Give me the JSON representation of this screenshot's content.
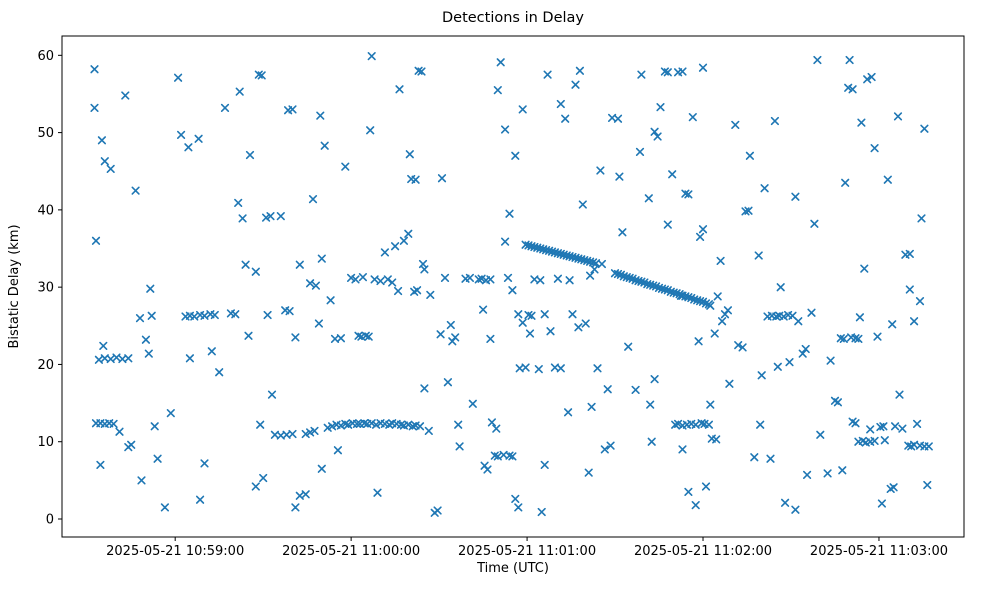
{
  "chart_data": {
    "type": "scatter",
    "title": "Detections in Delay",
    "xlabel": "Time (UTC)",
    "ylabel": "Bistatic Delay (km)",
    "marker": "x",
    "marker_color": "#1f77b4",
    "grid": false,
    "legend": null,
    "x_axis": {
      "unit": "seconds after 2025-05-21 10:58:00 UTC",
      "lim": [
        21.4,
        329.0
      ],
      "ticks": [
        60,
        120,
        180,
        240,
        300
      ],
      "tick_labels": [
        "2025-05-21 10:59:00",
        "2025-05-21 11:00:00",
        "2025-05-21 11:01:00",
        "2025-05-21 11:02:00",
        "2025-05-21 11:03:00"
      ]
    },
    "y_axis": {
      "lim": [
        -2.33,
        62.5
      ],
      "ticks": [
        0,
        10,
        20,
        30,
        40,
        50,
        60
      ],
      "tick_labels": [
        "0",
        "10",
        "20",
        "30",
        "40",
        "50",
        "60"
      ]
    },
    "points": [
      [
        32.5,
        58.2
      ],
      [
        32.5,
        53.2
      ],
      [
        33,
        36.0
      ],
      [
        33,
        12.4
      ],
      [
        34.5,
        12.4
      ],
      [
        34.5,
        7.0
      ],
      [
        34,
        20.6
      ],
      [
        35.5,
        22.4
      ],
      [
        36,
        20.8
      ],
      [
        36,
        12.3
      ],
      [
        36,
        46.3
      ],
      [
        35,
        49.0
      ],
      [
        37.5,
        12.4
      ],
      [
        38,
        20.7
      ],
      [
        38,
        45.3
      ],
      [
        39,
        12.3
      ],
      [
        40,
        20.9
      ],
      [
        41,
        11.3
      ],
      [
        42,
        20.7
      ],
      [
        43,
        54.8
      ],
      [
        44,
        20.8
      ],
      [
        44,
        9.3
      ],
      [
        45,
        9.6
      ],
      [
        46.5,
        42.5
      ],
      [
        48,
        26.0
      ],
      [
        48.5,
        5.0
      ],
      [
        50,
        23.2
      ],
      [
        51,
        21.4
      ],
      [
        51.5,
        29.8
      ],
      [
        52,
        26.3
      ],
      [
        53,
        12.0
      ],
      [
        54,
        7.8
      ],
      [
        56.5,
        1.5
      ],
      [
        58.5,
        13.7
      ],
      [
        61,
        57.1
      ],
      [
        62,
        49.7
      ],
      [
        63.5,
        26.2
      ],
      [
        64.5,
        48.1
      ],
      [
        65,
        26.3
      ],
      [
        65,
        20.8
      ],
      [
        66.5,
        26.2
      ],
      [
        68,
        49.2
      ],
      [
        68.5,
        26.4
      ],
      [
        68.5,
        2.5
      ],
      [
        70,
        26.3
      ],
      [
        70,
        7.2
      ],
      [
        72,
        26.5
      ],
      [
        72.5,
        21.7
      ],
      [
        73.5,
        26.4
      ],
      [
        75,
        19.0
      ],
      [
        77,
        53.2
      ],
      [
        79,
        26.6
      ],
      [
        80.5,
        26.5
      ],
      [
        81.5,
        40.9
      ],
      [
        82,
        55.3
      ],
      [
        83,
        38.9
      ],
      [
        84,
        32.9
      ],
      [
        85,
        23.7
      ],
      [
        85.5,
        47.1
      ],
      [
        87.5,
        32.0
      ],
      [
        87.5,
        4.2
      ],
      [
        88.5,
        57.5
      ],
      [
        89,
        12.2
      ],
      [
        89.5,
        57.4
      ],
      [
        90,
        5.3
      ],
      [
        91,
        39.0
      ],
      [
        91.5,
        26.4
      ],
      [
        92.5,
        39.2
      ],
      [
        93,
        16.1
      ],
      [
        94,
        10.9
      ],
      [
        96,
        10.8
      ],
      [
        96,
        39.2
      ],
      [
        97.5,
        27.0
      ],
      [
        98.5,
        52.9
      ],
      [
        99,
        26.9
      ],
      [
        100,
        53.0
      ],
      [
        98,
        10.9
      ],
      [
        100,
        11.0
      ],
      [
        101,
        23.5
      ],
      [
        101,
        1.5
      ],
      [
        102.5,
        32.9
      ],
      [
        102.5,
        3.0
      ],
      [
        104.5,
        3.2
      ],
      [
        104.5,
        11.0
      ],
      [
        106,
        11.2
      ],
      [
        106,
        30.5
      ],
      [
        107,
        41.4
      ],
      [
        107.5,
        11.4
      ],
      [
        108,
        30.2
      ],
      [
        109,
        25.3
      ],
      [
        109.5,
        52.2
      ],
      [
        110,
        33.7
      ],
      [
        110,
        6.5
      ],
      [
        111,
        48.3
      ],
      [
        112,
        11.8
      ],
      [
        113,
        28.3
      ],
      [
        113.5,
        12.0
      ],
      [
        114.5,
        23.3
      ],
      [
        115,
        12.2
      ],
      [
        115.5,
        8.9
      ],
      [
        116.5,
        23.4
      ],
      [
        116.5,
        12.1
      ],
      [
        118,
        45.6
      ],
      [
        118,
        12.3
      ],
      [
        119,
        12.2
      ],
      [
        120,
        31.2
      ],
      [
        120.5,
        12.4
      ],
      [
        121.5,
        31.0
      ],
      [
        122,
        12.3
      ],
      [
        122.5,
        23.7
      ],
      [
        123,
        12.3
      ],
      [
        123.5,
        23.6
      ],
      [
        124,
        31.3
      ],
      [
        124.5,
        12.4
      ],
      [
        125,
        23.7
      ],
      [
        125.5,
        12.3
      ],
      [
        126,
        23.6
      ],
      [
        126.5,
        50.3
      ],
      [
        127,
        59.9
      ],
      [
        127,
        12.4
      ],
      [
        128,
        31.0
      ],
      [
        128.5,
        12.2
      ],
      [
        129,
        3.4
      ],
      [
        130,
        30.8
      ],
      [
        130,
        12.4
      ],
      [
        131.5,
        34.5
      ],
      [
        131.5,
        12.3
      ],
      [
        132.5,
        31.0
      ],
      [
        133,
        12.2
      ],
      [
        134,
        30.6
      ],
      [
        134,
        12.4
      ],
      [
        135,
        35.3
      ],
      [
        135.5,
        12.3
      ],
      [
        136,
        29.5
      ],
      [
        136.5,
        55.6
      ],
      [
        137,
        12.2
      ],
      [
        138,
        36.0
      ],
      [
        138,
        12.1
      ],
      [
        139.5,
        36.9
      ],
      [
        139.5,
        12.2
      ],
      [
        140,
        47.2
      ],
      [
        140.5,
        44.0
      ],
      [
        141,
        12.0
      ],
      [
        141.5,
        29.4
      ],
      [
        142,
        43.9
      ],
      [
        142,
        12.1
      ],
      [
        142.5,
        29.6
      ],
      [
        143,
        58.0
      ],
      [
        143.5,
        12.0
      ],
      [
        144,
        57.9
      ],
      [
        144.5,
        33.0
      ],
      [
        145,
        32.3
      ],
      [
        145,
        16.9
      ],
      [
        146.5,
        11.4
      ],
      [
        147,
        29.0
      ],
      [
        148.5,
        0.8
      ],
      [
        149.5,
        1.1
      ],
      [
        150.5,
        23.9
      ],
      [
        151,
        44.1
      ],
      [
        152,
        31.2
      ],
      [
        153,
        17.7
      ],
      [
        154,
        25.1
      ],
      [
        154.5,
        23.0
      ],
      [
        155.5,
        23.5
      ],
      [
        156.5,
        12.2
      ],
      [
        157,
        9.4
      ],
      [
        159,
        31.1
      ],
      [
        160.5,
        31.2
      ],
      [
        161.5,
        14.9
      ],
      [
        163.5,
        31.0
      ],
      [
        164.5,
        31.1
      ],
      [
        165,
        27.1
      ],
      [
        166,
        30.9
      ],
      [
        165.5,
        6.9
      ],
      [
        166.5,
        6.4
      ],
      [
        167.5,
        31.0
      ],
      [
        167.5,
        23.3
      ],
      [
        168,
        12.5
      ],
      [
        169.5,
        11.7
      ],
      [
        169,
        8.2
      ],
      [
        170,
        8.1
      ],
      [
        170,
        55.5
      ],
      [
        171,
        59.1
      ],
      [
        172,
        8.3
      ],
      [
        172.5,
        35.9
      ],
      [
        172.5,
        50.4
      ],
      [
        173.5,
        31.2
      ],
      [
        174,
        8.2
      ],
      [
        174,
        39.5
      ],
      [
        175,
        8.1
      ],
      [
        175,
        29.6
      ],
      [
        176,
        47.0
      ],
      [
        176,
        2.6
      ],
      [
        177,
        1.5
      ],
      [
        177,
        26.5
      ],
      [
        178.5,
        25.4
      ],
      [
        177.5,
        19.5
      ],
      [
        179.5,
        19.6
      ],
      [
        178.5,
        53.0
      ],
      [
        179.5,
        35.5
      ],
      [
        180.5,
        35.4
      ],
      [
        181.5,
        35.3
      ],
      [
        182.5,
        35.2
      ],
      [
        183.5,
        35.1
      ],
      [
        184.5,
        35.0
      ],
      [
        185.5,
        34.9
      ],
      [
        186.5,
        34.8
      ],
      [
        187.5,
        34.7
      ],
      [
        188.5,
        34.6
      ],
      [
        189.5,
        34.5
      ],
      [
        190.5,
        34.4
      ],
      [
        191.5,
        34.3
      ],
      [
        192.5,
        34.2
      ],
      [
        193.5,
        34.1
      ],
      [
        194.5,
        34.0
      ],
      [
        195.5,
        33.9
      ],
      [
        196.5,
        33.8
      ],
      [
        197.5,
        33.7
      ],
      [
        198.5,
        33.6
      ],
      [
        199.5,
        33.5
      ],
      [
        200.5,
        33.4
      ],
      [
        201.5,
        33.3
      ],
      [
        202.5,
        33.2
      ],
      [
        203.5,
        33.1
      ],
      [
        180.5,
        26.4
      ],
      [
        181.5,
        26.3
      ],
      [
        181,
        24.0
      ],
      [
        182.5,
        31.0
      ],
      [
        184.5,
        30.9
      ],
      [
        184,
        19.4
      ],
      [
        185,
        0.9
      ],
      [
        186,
        26.5
      ],
      [
        186,
        7.0
      ],
      [
        187,
        57.5
      ],
      [
        188,
        24.3
      ],
      [
        189.5,
        19.6
      ],
      [
        191.5,
        19.5
      ],
      [
        190.5,
        31.1
      ],
      [
        191.5,
        53.7
      ],
      [
        193,
        51.8
      ],
      [
        194,
        13.8
      ],
      [
        194.5,
        30.9
      ],
      [
        195.5,
        26.5
      ],
      [
        196.5,
        56.2
      ],
      [
        197.5,
        24.8
      ],
      [
        198,
        58.0
      ],
      [
        199,
        40.7
      ],
      [
        200,
        25.3
      ],
      [
        201,
        6.0
      ],
      [
        201.5,
        31.5
      ],
      [
        202,
        14.5
      ],
      [
        203,
        32.3
      ],
      [
        204,
        19.5
      ],
      [
        205,
        45.1
      ],
      [
        205.5,
        33.0
      ],
      [
        206.5,
        9.0
      ],
      [
        208.5,
        9.5
      ],
      [
        207.5,
        16.8
      ],
      [
        209,
        51.9
      ],
      [
        211,
        51.8
      ],
      [
        210,
        31.8
      ],
      [
        211,
        31.7
      ],
      [
        212,
        31.6
      ],
      [
        213,
        31.4
      ],
      [
        214,
        31.3
      ],
      [
        215,
        31.2
      ],
      [
        216,
        31.1
      ],
      [
        217,
        30.9
      ],
      [
        218,
        30.8
      ],
      [
        219,
        30.7
      ],
      [
        220,
        30.6
      ],
      [
        221,
        30.4
      ],
      [
        222,
        30.3
      ],
      [
        223,
        30.2
      ],
      [
        224,
        30.1
      ],
      [
        225,
        29.9
      ],
      [
        226,
        29.8
      ],
      [
        227,
        29.7
      ],
      [
        228,
        29.6
      ],
      [
        229,
        29.4
      ],
      [
        230,
        29.3
      ],
      [
        231,
        29.2
      ],
      [
        232,
        29.1
      ],
      [
        233,
        28.9
      ],
      [
        234,
        28.8
      ],
      [
        235,
        28.7
      ],
      [
        236,
        28.6
      ],
      [
        237,
        28.4
      ],
      [
        238,
        28.3
      ],
      [
        239,
        28.2
      ],
      [
        240,
        28.1
      ],
      [
        241,
        27.9
      ],
      [
        242,
        27.8
      ],
      [
        242.5,
        27.6
      ],
      [
        211.5,
        44.3
      ],
      [
        212.5,
        37.1
      ],
      [
        214.5,
        22.3
      ],
      [
        217,
        16.7
      ],
      [
        218.5,
        47.5
      ],
      [
        219,
        57.5
      ],
      [
        221.5,
        41.5
      ],
      [
        222,
        14.8
      ],
      [
        222.5,
        10.0
      ],
      [
        223.5,
        50.1
      ],
      [
        224.5,
        49.5
      ],
      [
        223.5,
        18.1
      ],
      [
        225.5,
        53.3
      ],
      [
        227,
        57.9
      ],
      [
        228,
        57.8
      ],
      [
        228,
        38.1
      ],
      [
        229.5,
        44.6
      ],
      [
        230.5,
        12.2
      ],
      [
        231.5,
        57.8
      ],
      [
        233,
        57.9
      ],
      [
        231.5,
        12.3
      ],
      [
        232.5,
        28.9
      ],
      [
        233,
        12.1
      ],
      [
        233,
        9.0
      ],
      [
        234,
        42.1
      ],
      [
        235,
        42.0
      ],
      [
        234.5,
        12.2
      ],
      [
        235,
        3.5
      ],
      [
        236,
        12.3
      ],
      [
        236.5,
        52.0
      ],
      [
        237.5,
        12.2
      ],
      [
        237.5,
        1.8
      ],
      [
        238.5,
        23.0
      ],
      [
        239,
        36.5
      ],
      [
        239.5,
        12.4
      ],
      [
        240,
        37.5
      ],
      [
        240,
        58.4
      ],
      [
        240.5,
        12.3
      ],
      [
        241,
        4.2
      ],
      [
        242,
        12.2
      ],
      [
        242.5,
        14.8
      ],
      [
        243,
        10.4
      ],
      [
        244.5,
        10.3
      ],
      [
        244,
        24.0
      ],
      [
        245,
        28.8
      ],
      [
        246,
        33.4
      ],
      [
        246.5,
        25.6
      ],
      [
        247.5,
        26.5
      ],
      [
        248.5,
        27.0
      ],
      [
        249,
        17.5
      ],
      [
        251,
        51.0
      ],
      [
        252,
        22.5
      ],
      [
        253.5,
        22.2
      ],
      [
        254.5,
        39.8
      ],
      [
        255.5,
        39.9
      ],
      [
        256,
        47.0
      ],
      [
        257.5,
        8.0
      ],
      [
        259,
        34.1
      ],
      [
        259.5,
        12.2
      ],
      [
        260,
        18.6
      ],
      [
        261,
        42.8
      ],
      [
        262,
        26.2
      ],
      [
        263.5,
        26.3
      ],
      [
        265,
        26.2
      ],
      [
        266,
        26.3
      ],
      [
        267.5,
        26.2
      ],
      [
        269,
        26.4
      ],
      [
        270.5,
        26.3
      ],
      [
        263,
        7.8
      ],
      [
        264.5,
        51.5
      ],
      [
        265.5,
        19.7
      ],
      [
        266.5,
        30.0
      ],
      [
        268,
        2.1
      ],
      [
        269.5,
        20.3
      ],
      [
        271.5,
        41.7
      ],
      [
        271.5,
        1.2
      ],
      [
        272.5,
        25.6
      ],
      [
        274,
        21.4
      ],
      [
        275,
        22.0
      ],
      [
        275.5,
        5.7
      ],
      [
        277,
        26.7
      ],
      [
        278,
        38.2
      ],
      [
        279,
        59.4
      ],
      [
        280,
        10.9
      ],
      [
        282.5,
        5.9
      ],
      [
        283.5,
        20.5
      ],
      [
        285,
        15.3
      ],
      [
        286,
        15.1
      ],
      [
        287,
        23.4
      ],
      [
        287.5,
        6.3
      ],
      [
        288,
        23.3
      ],
      [
        288.5,
        43.5
      ],
      [
        289.5,
        55.8
      ],
      [
        290,
        59.4
      ],
      [
        290.5,
        23.5
      ],
      [
        291,
        55.6
      ],
      [
        291,
        12.6
      ],
      [
        292,
        23.4
      ],
      [
        292,
        12.4
      ],
      [
        293,
        10.0
      ],
      [
        293,
        23.3
      ],
      [
        293.5,
        26.1
      ],
      [
        294,
        51.3
      ],
      [
        294.5,
        10.1
      ],
      [
        295,
        32.4
      ],
      [
        295.5,
        9.9
      ],
      [
        296,
        56.9
      ],
      [
        297,
        10.0
      ],
      [
        297.5,
        57.2
      ],
      [
        297,
        11.6
      ],
      [
        298.5,
        48.0
      ],
      [
        298.5,
        10.1
      ],
      [
        299.5,
        23.6
      ],
      [
        300.5,
        11.9
      ],
      [
        301,
        2.0
      ],
      [
        301.5,
        12.0
      ],
      [
        302,
        10.2
      ],
      [
        303,
        43.9
      ],
      [
        304,
        3.9
      ],
      [
        304.5,
        25.2
      ],
      [
        305,
        4.1
      ],
      [
        305.5,
        12.0
      ],
      [
        306.5,
        52.1
      ],
      [
        307,
        16.1
      ],
      [
        308,
        11.7
      ],
      [
        309,
        34.2
      ],
      [
        310,
        9.5
      ],
      [
        310.5,
        34.3
      ],
      [
        311,
        9.4
      ],
      [
        310.5,
        29.7
      ],
      [
        312,
        9.6
      ],
      [
        312,
        25.6
      ],
      [
        313,
        12.3
      ],
      [
        314,
        9.5
      ],
      [
        314,
        28.2
      ],
      [
        314.5,
        38.9
      ],
      [
        315.5,
        50.5
      ],
      [
        315.5,
        9.4
      ],
      [
        316.5,
        4.4
      ],
      [
        317,
        9.4
      ]
    ]
  }
}
